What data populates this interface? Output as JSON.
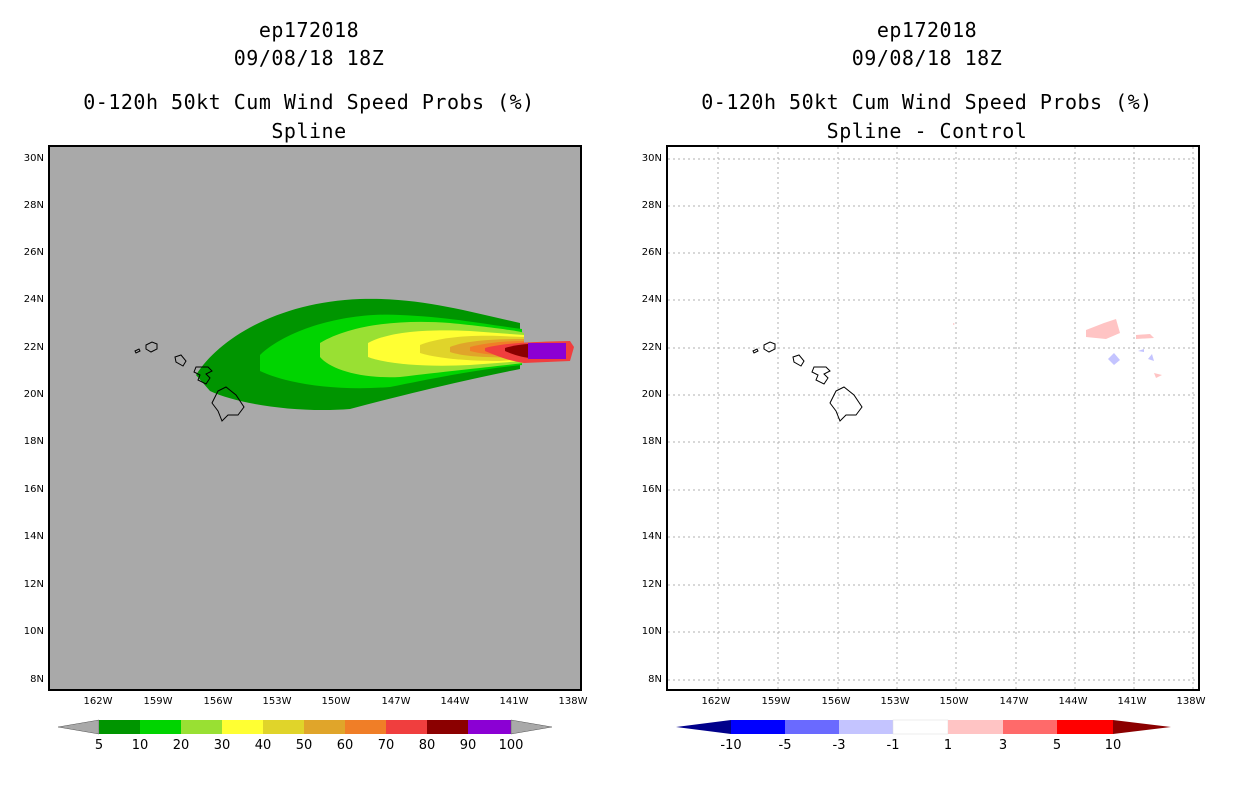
{
  "left": {
    "title_line1": "ep172018",
    "title_line2": "09/08/18 18Z",
    "title_line3": "0-120h 50kt Cum Wind Speed Probs (%)",
    "title_line4": "Spline",
    "background_color": "#a9a9a9",
    "colorbar": {
      "labels": [
        "5",
        "10",
        "20",
        "30",
        "40",
        "50",
        "60",
        "70",
        "80",
        "90",
        "100"
      ],
      "colors": [
        "#009500",
        "#00d400",
        "#99e033",
        "#ffff33",
        "#e0d42a",
        "#e0a52a",
        "#f07e27",
        "#f03e3e",
        "#8b0000",
        "#8b00d4"
      ]
    }
  },
  "right": {
    "title_line1": "ep172018",
    "title_line2": "09/08/18 18Z",
    "title_line3": "0-120h 50kt Cum Wind Speed Probs (%)",
    "title_line4": "Spline - Control",
    "colorbar": {
      "labels": [
        "-10",
        "-5",
        "-3",
        "-1",
        "1",
        "3",
        "5",
        "10"
      ],
      "colors": [
        "#00008b",
        "#0000ff",
        "#6a6aff",
        "#c4c4ff",
        "#ffffff",
        "#ffc4c4",
        "#ff6a6a",
        "#ff0000",
        "#8b0000"
      ]
    }
  },
  "axes": {
    "lat_labels": [
      "30N",
      "28N",
      "26N",
      "24N",
      "22N",
      "20N",
      "18N",
      "16N",
      "14N",
      "12N",
      "10N",
      "8N"
    ],
    "lon_labels": [
      "162W",
      "159W",
      "156W",
      "153W",
      "150W",
      "147W",
      "144W",
      "141W",
      "138W"
    ]
  }
}
